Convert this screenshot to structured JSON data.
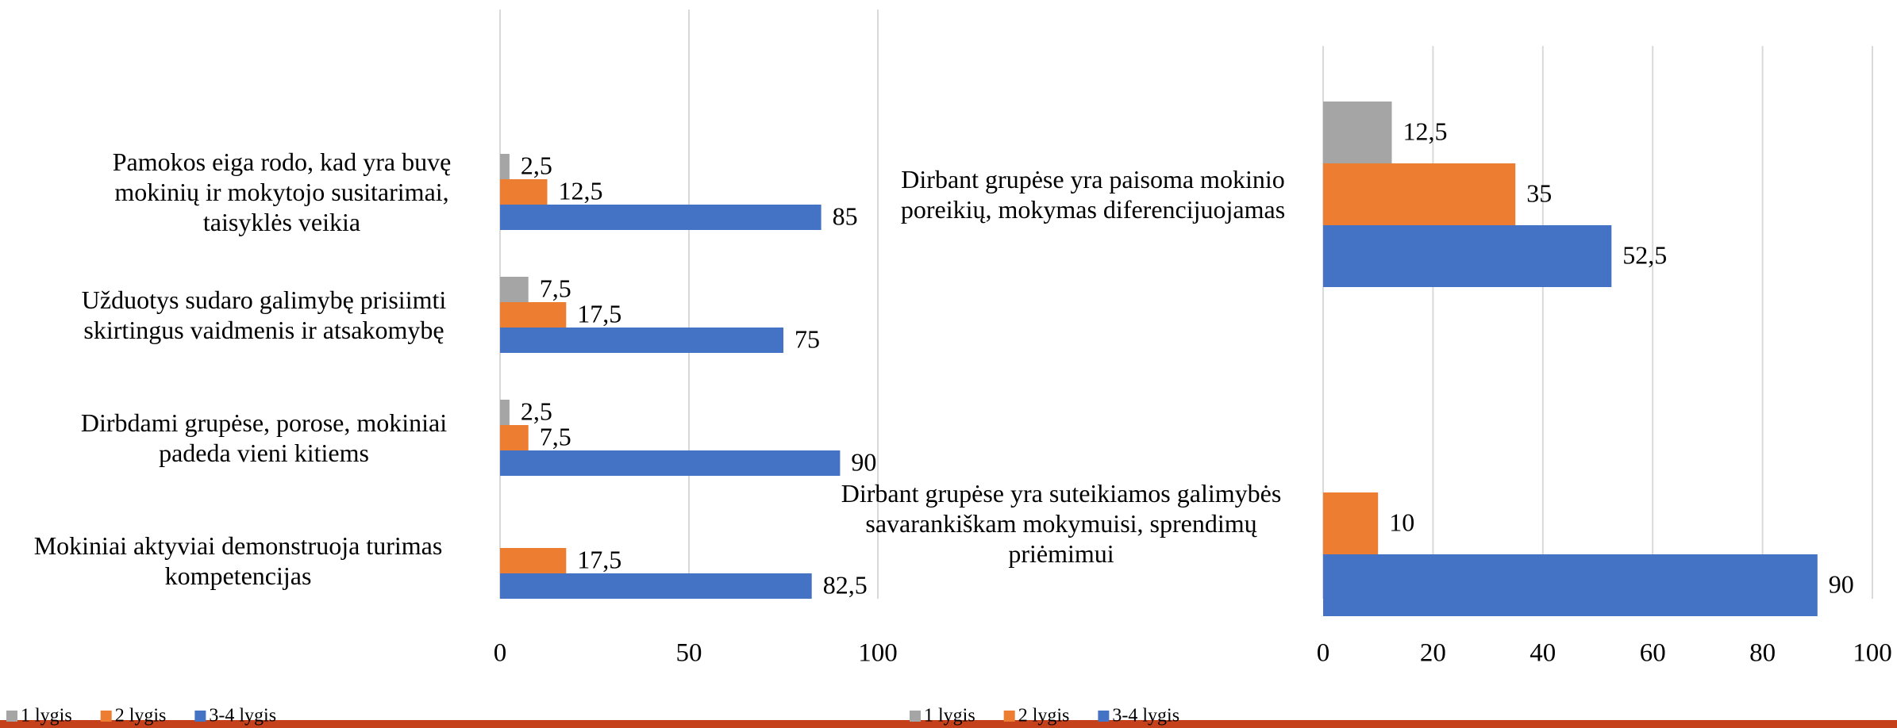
{
  "chart_data": [
    {
      "type": "barh",
      "categories": [
        "Pamokos eiga rodo, kad yra buvę mokinių ir mokytojo susitarimai, taisyklės veikia",
        "Užduotys sudaro galimybę prisiimti skirtingus vaidmenis ir atsakomybę",
        "Dirbdami grupėse, porose, mokiniai padeda vieni kitiems",
        "Mokiniai aktyviai demonstruoja turimas kompetencijas"
      ],
      "series": [
        {
          "name": "1 lygis",
          "color": "#a5a5a5",
          "values": [
            2.5,
            7.5,
            2.5,
            null
          ],
          "value_labels": [
            "2,5",
            "7,5",
            "2,5",
            null
          ]
        },
        {
          "name": "2 lygis",
          "color": "#ed7d31",
          "values": [
            12.5,
            17.5,
            7.5,
            17.5
          ],
          "value_labels": [
            "12,5",
            "17,5",
            "7,5",
            "17,5"
          ]
        },
        {
          "name": "3-4 lygis",
          "color": "#4472c4",
          "values": [
            85,
            75,
            90,
            82.5
          ],
          "value_labels": [
            "85",
            "75",
            "90",
            "82,5"
          ]
        }
      ],
      "xlim": [
        0,
        100
      ],
      "xticks": [
        0,
        50,
        100
      ],
      "grid": true,
      "legend": "bottom"
    },
    {
      "type": "barh",
      "categories": [
        "Dirbant grupėse yra paisoma mokinio poreikių, mokymas diferencijuojamas",
        "Dirbant grupėse yra suteikiamos galimybės savarankiškam mokymuisi, sprendimų priėmimui"
      ],
      "series": [
        {
          "name": "1 lygis",
          "color": "#a5a5a5",
          "values": [
            12.5,
            null
          ],
          "value_labels": [
            "12,5",
            null
          ]
        },
        {
          "name": "2 lygis",
          "color": "#ed7d31",
          "values": [
            35,
            10
          ],
          "value_labels": [
            "35",
            "10"
          ]
        },
        {
          "name": "3-4 lygis",
          "color": "#4472c4",
          "values": [
            52.5,
            90
          ],
          "value_labels": [
            "52,5",
            "90"
          ]
        }
      ],
      "xlim": [
        0,
        100
      ],
      "xticks": [
        0,
        20,
        40,
        60,
        80,
        100
      ],
      "grid": true,
      "legend": "bottom"
    }
  ]
}
